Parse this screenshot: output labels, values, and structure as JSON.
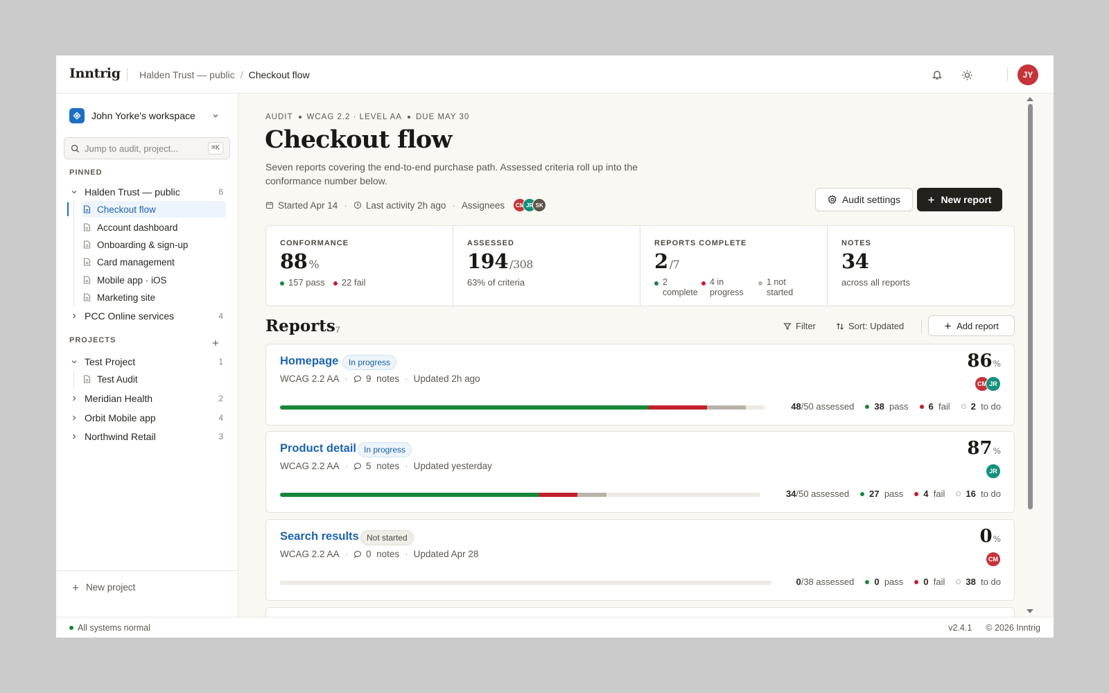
{
  "colors": {
    "accent": "#1b6fc4",
    "link": "#1a64ae",
    "pass": "#16863a",
    "fail": "#c21f2b",
    "todo": "#b9b3aa",
    "dark_button": "#24211d",
    "page_bg": "#faf8f3"
  },
  "topbar": {
    "brand": "Inntrig",
    "breadcrumb": {
      "parent": "Halden Trust — public",
      "separator": "/",
      "current": "Checkout flow"
    },
    "icons": [
      "bell-icon",
      "sun-icon"
    ],
    "user_initials": "JY"
  },
  "sidebar": {
    "workspace": "John Yorke's workspace",
    "search": {
      "placeholder": "Jump to audit, project...",
      "shortcut": "⌘K"
    },
    "pinned_label": "PINNED",
    "pinned": {
      "name": "Halden Trust — public",
      "count": "6",
      "children": [
        "Checkout flow",
        "Account dashboard",
        "Onboarding & sign-up",
        "Card management",
        "Mobile app · iOS",
        "Marketing site"
      ],
      "active_child": "Checkout flow"
    },
    "pinned_other": {
      "name": "PCC Online services",
      "count": "4"
    },
    "projects_label": "PROJECTS",
    "projects": [
      {
        "name": "Test Project",
        "count": "1",
        "expanded": true,
        "children": [
          "Test Audit"
        ]
      },
      {
        "name": "Meridian Health",
        "count": "2"
      },
      {
        "name": "Orbit Mobile app",
        "count": "4"
      },
      {
        "name": "Northwind Retail",
        "count": "3"
      }
    ],
    "new_project": "New project"
  },
  "header": {
    "eyebrow": [
      "AUDIT",
      "WCAG 2.2 · LEVEL AA",
      "DUE MAY 30"
    ],
    "title": "Checkout flow",
    "description": "Seven reports covering the end-to-end purchase path. Assessed criteria roll up into the conformance number below.",
    "started": "Started Apr 14",
    "last_activity": "Last activity 2h ago",
    "assignees_label": "Assignees",
    "assignees": [
      {
        "initials": "CM",
        "color": "#c4343a"
      },
      {
        "initials": "JR",
        "color": "#13917a"
      },
      {
        "initials": "SK",
        "color": "#5d544b"
      }
    ],
    "audit_settings": "Audit settings",
    "new_report": "New report"
  },
  "stats": {
    "conformance": {
      "label": "CONFORMANCE",
      "value": "88",
      "suffix": "%",
      "pass": "157 pass",
      "fail": "22 fail"
    },
    "assessed": {
      "label": "ASSESSED",
      "value": "194",
      "suffix": "/308",
      "sub": "63% of criteria"
    },
    "reports_complete": {
      "label": "REPORTS COMPLETE",
      "value": "2",
      "suffix": "/7",
      "complete": "2 complete",
      "in_progress": "4 in progress",
      "not_started": "1 not started"
    },
    "notes": {
      "label": "NOTES",
      "value": "34",
      "sub": "across all reports"
    }
  },
  "reports": {
    "title": "Reports",
    "count": "7",
    "filter": "Filter",
    "sort": "Sort: Updated",
    "add": "Add report",
    "items": [
      {
        "title": "Homepage",
        "status": "In progress",
        "standard": "WCAG 2.2 AA",
        "notes": "9",
        "notes_label": "notes",
        "updated": "Updated 2h ago",
        "score": "86",
        "assignees": [
          {
            "initials": "CM",
            "color": "#c4343a"
          },
          {
            "initials": "JR",
            "color": "#13917a"
          }
        ],
        "assessed": "48",
        "total": "/50",
        "assessed_label": "assessed",
        "pass": "38",
        "fail": "6",
        "todo": "2",
        "bar": {
          "pass": 0.76,
          "fail": 0.12,
          "todo": 0.08
        }
      },
      {
        "title": "Product detail",
        "status": "In progress",
        "standard": "WCAG 2.2 AA",
        "notes": "5",
        "notes_label": "notes",
        "updated": "Updated yesterday",
        "score": "87",
        "assignees": [
          {
            "initials": "JR",
            "color": "#13917a"
          }
        ],
        "assessed": "34",
        "total": "/50",
        "assessed_label": "assessed",
        "pass": "27",
        "fail": "4",
        "todo": "16",
        "bar": {
          "pass": 0.54,
          "fail": 0.08,
          "todo": 0.06
        }
      },
      {
        "title": "Search results",
        "status": "Not started",
        "standard": "WCAG 2.2 AA",
        "notes": "0",
        "notes_label": "notes",
        "updated": "Updated Apr 28",
        "score": "0",
        "assignees": [
          {
            "initials": "CM",
            "color": "#c4343a"
          }
        ],
        "assessed": "0",
        "total": "/38",
        "assessed_label": "assessed",
        "pass": "0",
        "fail": "0",
        "todo": "38",
        "bar": {
          "pass": 0,
          "fail": 0,
          "todo": 0
        }
      }
    ],
    "labels": {
      "pass": "pass",
      "fail": "fail",
      "todo": "to do",
      "pct": "%"
    }
  },
  "statusbar": {
    "status": "All systems normal",
    "version": "v2.4.1",
    "copyright": "© 2026 Inntrig"
  }
}
